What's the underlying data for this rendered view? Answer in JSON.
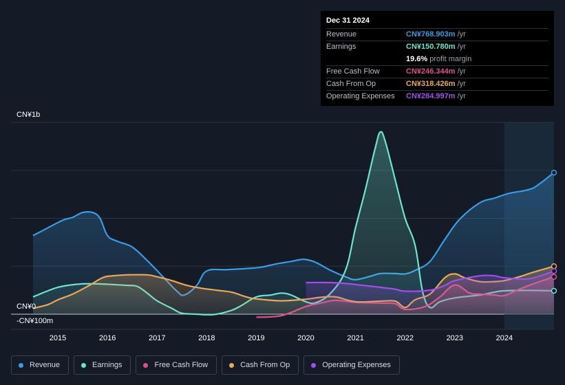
{
  "tooltip": {
    "date": "Dec 31 2024",
    "rows": [
      {
        "label": "Revenue",
        "value": "CN¥768.903m",
        "unit": "/yr",
        "color": "#3b9be3"
      },
      {
        "label": "Earnings",
        "value": "CN¥150.780m",
        "unit": "/yr",
        "color": "#6ee3cf"
      },
      {
        "label": "",
        "value": "19.6%",
        "unit": "profit margin",
        "color": "#ffffff"
      },
      {
        "label": "Free Cash Flow",
        "value": "CN¥246.344m",
        "unit": "/yr",
        "color": "#d8528a"
      },
      {
        "label": "Cash From Op",
        "value": "CN¥318.426m",
        "unit": "/yr",
        "color": "#e9a95b"
      },
      {
        "label": "Operating Expenses",
        "value": "CN¥284.997m",
        "unit": "/yr",
        "color": "#a04fe8"
      }
    ]
  },
  "legend": [
    {
      "label": "Revenue",
      "color": "#3b9be3"
    },
    {
      "label": "Earnings",
      "color": "#6ee3cf"
    },
    {
      "label": "Free Cash Flow",
      "color": "#d8528a"
    },
    {
      "label": "Cash From Op",
      "color": "#e9a95b"
    },
    {
      "label": "Operating Expenses",
      "color": "#a04fe8"
    }
  ],
  "chart_data": {
    "type": "area",
    "title": "",
    "xlabel": "",
    "ylabel": "",
    "y_tick_labels": {
      "top": "CN¥1b",
      "zero": "CN¥0",
      "bottom": "-CN¥100m"
    },
    "ylim": [
      -100,
      1000
    ],
    "xlim": [
      2014.5,
      2025.0
    ],
    "x_ticks": [
      "2015",
      "2016",
      "2017",
      "2018",
      "2019",
      "2020",
      "2021",
      "2022",
      "2023",
      "2024"
    ],
    "highlight_start": 2024.0,
    "series": [
      {
        "name": "Revenue",
        "color": "#3b9be3",
        "fill": true,
        "points": [
          [
            2014.5,
            410
          ],
          [
            2014.8,
            450
          ],
          [
            2015.1,
            490
          ],
          [
            2015.3,
            505
          ],
          [
            2015.5,
            530
          ],
          [
            2015.7,
            530
          ],
          [
            2015.85,
            500
          ],
          [
            2016.0,
            410
          ],
          [
            2016.2,
            380
          ],
          [
            2016.5,
            350
          ],
          [
            2016.8,
            280
          ],
          [
            2017.1,
            200
          ],
          [
            2017.4,
            120
          ],
          [
            2017.55,
            100
          ],
          [
            2017.8,
            150
          ],
          [
            2018.0,
            225
          ],
          [
            2018.4,
            232
          ],
          [
            2018.8,
            238
          ],
          [
            2019.1,
            245
          ],
          [
            2019.4,
            262
          ],
          [
            2019.7,
            275
          ],
          [
            2019.9,
            285
          ],
          [
            2020.0,
            285
          ],
          [
            2020.2,
            270
          ],
          [
            2020.5,
            228
          ],
          [
            2020.8,
            195
          ],
          [
            2021.0,
            180
          ],
          [
            2021.3,
            198
          ],
          [
            2021.5,
            212
          ],
          [
            2021.8,
            212
          ],
          [
            2022.0,
            210
          ],
          [
            2022.2,
            228
          ],
          [
            2022.5,
            275
          ],
          [
            2022.8,
            390
          ],
          [
            2023.1,
            495
          ],
          [
            2023.5,
            580
          ],
          [
            2023.8,
            605
          ],
          [
            2024.1,
            630
          ],
          [
            2024.5,
            650
          ],
          [
            2024.7,
            678
          ],
          [
            2025.0,
            738
          ]
        ]
      },
      {
        "name": "Earnings",
        "color": "#6ee3cf",
        "fill": true,
        "points": [
          [
            2014.5,
            90
          ],
          [
            2014.8,
            122
          ],
          [
            2015.0,
            140
          ],
          [
            2015.2,
            150
          ],
          [
            2015.5,
            158
          ],
          [
            2015.8,
            158
          ],
          [
            2016.1,
            155
          ],
          [
            2016.4,
            150
          ],
          [
            2016.6,
            145
          ],
          [
            2016.8,
            110
          ],
          [
            2017.0,
            70
          ],
          [
            2017.3,
            30
          ],
          [
            2017.5,
            5
          ],
          [
            2017.8,
            0
          ],
          [
            2018.0,
            -3
          ],
          [
            2018.2,
            0
          ],
          [
            2018.5,
            20
          ],
          [
            2018.7,
            45
          ],
          [
            2019.0,
            90
          ],
          [
            2019.3,
            100
          ],
          [
            2019.5,
            110
          ],
          [
            2019.7,
            100
          ],
          [
            2020.0,
            65
          ],
          [
            2020.2,
            60
          ],
          [
            2020.5,
            110
          ],
          [
            2020.8,
            230
          ],
          [
            2021.0,
            450
          ],
          [
            2021.2,
            650
          ],
          [
            2021.4,
            870
          ],
          [
            2021.5,
            950
          ],
          [
            2021.6,
            900
          ],
          [
            2021.8,
            700
          ],
          [
            2022.0,
            500
          ],
          [
            2022.2,
            360
          ],
          [
            2022.35,
            120
          ],
          [
            2022.5,
            35
          ],
          [
            2022.7,
            65
          ],
          [
            2023.0,
            85
          ],
          [
            2023.5,
            100
          ],
          [
            2023.8,
            115
          ],
          [
            2024.0,
            122
          ],
          [
            2024.5,
            124
          ],
          [
            2025.0,
            122
          ]
        ]
      },
      {
        "name": "Free Cash Flow",
        "color": "#d8528a",
        "fill": true,
        "points": [
          [
            2019.0,
            -16
          ],
          [
            2019.5,
            -8
          ],
          [
            2020.0,
            40
          ],
          [
            2020.3,
            58
          ],
          [
            2020.6,
            72
          ],
          [
            2021.0,
            62
          ],
          [
            2021.5,
            58
          ],
          [
            2021.8,
            55
          ],
          [
            2022.0,
            25
          ],
          [
            2022.4,
            40
          ],
          [
            2022.7,
            90
          ],
          [
            2023.0,
            152
          ],
          [
            2023.3,
            110
          ],
          [
            2023.5,
            105
          ],
          [
            2023.8,
            100
          ],
          [
            2024.0,
            97
          ],
          [
            2024.3,
            130
          ],
          [
            2024.6,
            160
          ],
          [
            2025.0,
            195
          ]
        ]
      },
      {
        "name": "Cash From Op",
        "color": "#e9a95b",
        "fill": true,
        "points": [
          [
            2014.5,
            30
          ],
          [
            2014.8,
            50
          ],
          [
            2015.0,
            75
          ],
          [
            2015.3,
            105
          ],
          [
            2015.6,
            145
          ],
          [
            2015.9,
            190
          ],
          [
            2016.1,
            200
          ],
          [
            2016.4,
            205
          ],
          [
            2016.8,
            205
          ],
          [
            2017.0,
            195
          ],
          [
            2017.3,
            175
          ],
          [
            2017.6,
            150
          ],
          [
            2017.9,
            135
          ],
          [
            2018.2,
            125
          ],
          [
            2018.5,
            115
          ],
          [
            2018.8,
            90
          ],
          [
            2019.0,
            80
          ],
          [
            2019.5,
            70
          ],
          [
            2020.0,
            78
          ],
          [
            2020.3,
            88
          ],
          [
            2020.6,
            90
          ],
          [
            2021.0,
            65
          ],
          [
            2021.5,
            68
          ],
          [
            2021.8,
            68
          ],
          [
            2022.0,
            35
          ],
          [
            2022.2,
            75
          ],
          [
            2022.5,
            105
          ],
          [
            2022.8,
            190
          ],
          [
            2023.0,
            210
          ],
          [
            2023.2,
            190
          ],
          [
            2023.5,
            170
          ],
          [
            2023.8,
            170
          ],
          [
            2024.0,
            175
          ],
          [
            2024.3,
            195
          ],
          [
            2024.6,
            220
          ],
          [
            2025.0,
            250
          ]
        ]
      },
      {
        "name": "Operating Expenses",
        "color": "#a04fe8",
        "fill": true,
        "points": [
          [
            2020.0,
            165
          ],
          [
            2020.5,
            165
          ],
          [
            2020.8,
            160
          ],
          [
            2021.0,
            155
          ],
          [
            2021.5,
            140
          ],
          [
            2021.8,
            130
          ],
          [
            2022.0,
            120
          ],
          [
            2022.5,
            125
          ],
          [
            2022.8,
            150
          ],
          [
            2023.0,
            175
          ],
          [
            2023.5,
            200
          ],
          [
            2023.8,
            200
          ],
          [
            2024.0,
            190
          ],
          [
            2024.5,
            185
          ],
          [
            2025.0,
            225
          ]
        ]
      }
    ]
  }
}
